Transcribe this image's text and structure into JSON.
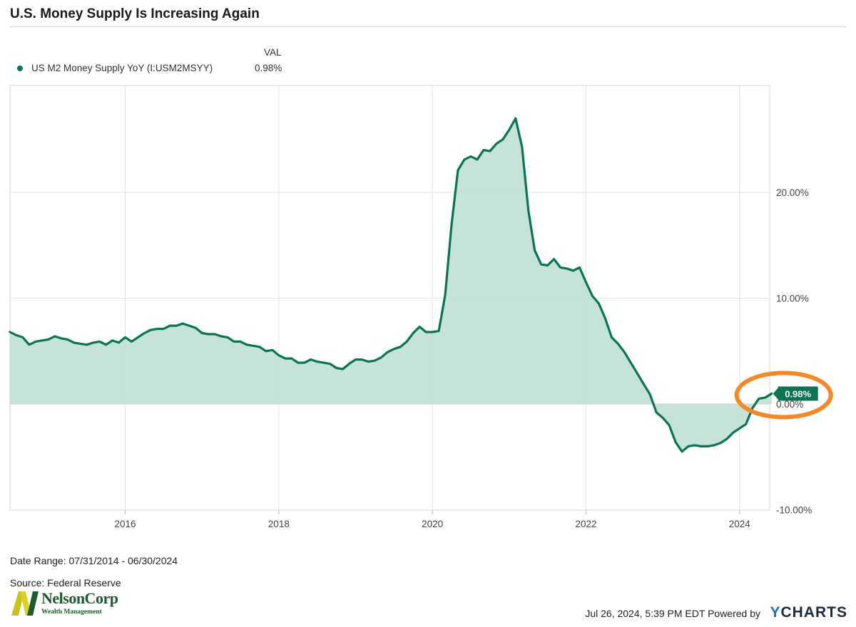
{
  "title": "U.S. Money Supply Is Increasing Again",
  "legend": {
    "header": "VAL",
    "series_name": "US M2 Money Supply YoY (I:USM2MSYY)",
    "series_value": "0.98%"
  },
  "footer": {
    "date_range": "Date Range: 07/31/2014 - 06/30/2024",
    "source": "Source: Federal Reserve",
    "timestamp": "Jul 26, 2024, 5:39 PM EDT Powered by",
    "brand_y": "Y",
    "brand_rest": "CHARTS"
  },
  "logo": {
    "letter": "N",
    "name": "NelsonCorp",
    "subtitle": "Wealth Management"
  },
  "colors": {
    "line": "#0b7552",
    "fill": "#bfe0d4",
    "highlight": "#f4892a",
    "grid": "#e3e3e3"
  },
  "chart_data": {
    "type": "area",
    "title": "U.S. Money Supply Is Increasing Again",
    "xlabel": "",
    "ylabel": "",
    "x_ticks": [
      "2016",
      "2018",
      "2020",
      "2022",
      "2024"
    ],
    "y_ticks": [
      "20.00%",
      "10.00%",
      "0.00%",
      "-10.00%"
    ],
    "ylim": [
      -10,
      30
    ],
    "grid": true,
    "legend_position": "top-left",
    "last_value_label": "0.98%",
    "series": [
      {
        "name": "US M2 Money Supply YoY (I:USM2MSYY)",
        "x": [
          "2014-07",
          "2014-08",
          "2014-09",
          "2014-10",
          "2014-11",
          "2014-12",
          "2015-01",
          "2015-02",
          "2015-03",
          "2015-04",
          "2015-05",
          "2015-06",
          "2015-07",
          "2015-08",
          "2015-09",
          "2015-10",
          "2015-11",
          "2015-12",
          "2016-01",
          "2016-02",
          "2016-03",
          "2016-04",
          "2016-05",
          "2016-06",
          "2016-07",
          "2016-08",
          "2016-09",
          "2016-10",
          "2016-11",
          "2016-12",
          "2017-01",
          "2017-02",
          "2017-03",
          "2017-04",
          "2017-05",
          "2017-06",
          "2017-07",
          "2017-08",
          "2017-09",
          "2017-10",
          "2017-11",
          "2017-12",
          "2018-01",
          "2018-02",
          "2018-03",
          "2018-04",
          "2018-05",
          "2018-06",
          "2018-07",
          "2018-08",
          "2018-09",
          "2018-10",
          "2018-11",
          "2018-12",
          "2019-01",
          "2019-02",
          "2019-03",
          "2019-04",
          "2019-05",
          "2019-06",
          "2019-07",
          "2019-08",
          "2019-09",
          "2019-10",
          "2019-11",
          "2019-12",
          "2020-01",
          "2020-02",
          "2020-03",
          "2020-04",
          "2020-05",
          "2020-06",
          "2020-07",
          "2020-08",
          "2020-09",
          "2020-10",
          "2020-11",
          "2020-12",
          "2021-01",
          "2021-02",
          "2021-03",
          "2021-04",
          "2021-05",
          "2021-06",
          "2021-07",
          "2021-08",
          "2021-09",
          "2021-10",
          "2021-11",
          "2021-12",
          "2022-01",
          "2022-02",
          "2022-03",
          "2022-04",
          "2022-05",
          "2022-06",
          "2022-07",
          "2022-08",
          "2022-09",
          "2022-10",
          "2022-11",
          "2022-12",
          "2023-01",
          "2023-02",
          "2023-03",
          "2023-04",
          "2023-05",
          "2023-06",
          "2023-07",
          "2023-08",
          "2023-09",
          "2023-10",
          "2023-11",
          "2023-12",
          "2024-01",
          "2024-02",
          "2024-03",
          "2024-04",
          "2024-05",
          "2024-06"
        ],
        "values": [
          6.8,
          6.5,
          6.3,
          5.6,
          5.9,
          6.0,
          6.1,
          6.4,
          6.2,
          6.1,
          5.8,
          5.7,
          5.6,
          5.8,
          5.9,
          5.6,
          6.0,
          5.8,
          6.3,
          5.9,
          6.3,
          6.7,
          7.0,
          7.1,
          7.1,
          7.4,
          7.4,
          7.6,
          7.4,
          7.2,
          6.7,
          6.6,
          6.6,
          6.4,
          6.3,
          5.9,
          5.9,
          5.6,
          5.5,
          5.4,
          5.0,
          5.1,
          4.6,
          4.3,
          4.3,
          3.9,
          3.9,
          4.2,
          4.0,
          3.9,
          3.8,
          3.4,
          3.3,
          3.8,
          4.2,
          4.2,
          4.0,
          4.1,
          4.4,
          4.9,
          5.2,
          5.4,
          5.9,
          6.7,
          7.3,
          6.8,
          6.8,
          6.9,
          10.3,
          17.0,
          22.1,
          23.1,
          23.4,
          23.1,
          24.0,
          23.9,
          24.6,
          25.0,
          25.9,
          27.0,
          24.3,
          18.3,
          14.5,
          13.2,
          13.1,
          13.7,
          12.9,
          12.8,
          12.6,
          12.9,
          11.5,
          10.2,
          9.5,
          8.1,
          6.3,
          5.7,
          4.9,
          3.9,
          2.9,
          1.9,
          0.9,
          -0.8,
          -1.3,
          -2.0,
          -3.6,
          -4.5,
          -4.0,
          -3.9,
          -4.0,
          -4.0,
          -3.9,
          -3.7,
          -3.3,
          -2.7,
          -2.3,
          -1.9,
          -0.4,
          0.5,
          0.6,
          0.98
        ]
      }
    ]
  }
}
